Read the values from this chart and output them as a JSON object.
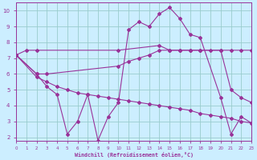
{
  "bg_color": "#cceeff",
  "grid_color": "#99cccc",
  "line_color": "#993399",
  "xlim": [
    0,
    23
  ],
  "ylim": [
    1.8,
    10.5
  ],
  "xticks": [
    0,
    1,
    2,
    3,
    4,
    5,
    6,
    7,
    8,
    9,
    10,
    11,
    12,
    13,
    14,
    15,
    16,
    17,
    18,
    19,
    20,
    21,
    22,
    23
  ],
  "yticks": [
    2,
    3,
    4,
    5,
    6,
    7,
    8,
    9,
    10
  ],
  "xlabel": "Windchill (Refroidissement éolien,°C)",
  "line1_x": [
    0,
    1,
    2,
    10,
    14,
    15,
    16,
    17,
    18,
    19,
    20,
    21,
    22,
    23
  ],
  "line1_y": [
    7.2,
    7.5,
    7.5,
    7.5,
    7.8,
    7.5,
    7.5,
    7.5,
    7.5,
    7.5,
    7.5,
    7.5,
    7.5,
    7.5
  ],
  "line2_x": [
    0,
    2,
    3,
    10,
    11,
    12,
    13,
    14,
    15,
    16,
    17,
    18,
    20,
    21,
    22,
    23
  ],
  "line2_y": [
    7.2,
    6.0,
    6.0,
    6.5,
    6.8,
    7.0,
    7.2,
    7.5,
    7.5,
    7.5,
    7.5,
    7.5,
    7.5,
    5.0,
    4.5,
    4.2
  ],
  "line3_x": [
    0,
    2,
    3,
    4,
    5,
    6,
    7,
    8,
    9,
    10,
    11,
    12,
    13,
    14,
    15,
    16,
    17,
    18,
    19,
    20,
    21,
    22,
    23
  ],
  "line3_y": [
    7.2,
    5.8,
    5.5,
    5.2,
    5.0,
    4.8,
    4.7,
    4.6,
    4.5,
    4.4,
    4.3,
    4.2,
    4.1,
    4.0,
    3.9,
    3.8,
    3.7,
    3.5,
    3.4,
    3.3,
    3.2,
    3.0,
    2.9
  ],
  "line4_x": [
    0,
    2,
    3,
    4,
    5,
    6,
    7,
    8,
    9,
    10,
    11,
    12,
    13,
    14,
    15,
    16,
    17,
    18,
    20,
    21,
    22,
    23
  ],
  "line4_y": [
    7.2,
    6.0,
    5.2,
    4.7,
    2.2,
    3.0,
    4.7,
    1.8,
    3.3,
    4.2,
    8.8,
    9.3,
    9.0,
    9.8,
    10.2,
    9.5,
    8.5,
    8.3,
    4.5,
    2.2,
    3.3,
    2.9
  ]
}
